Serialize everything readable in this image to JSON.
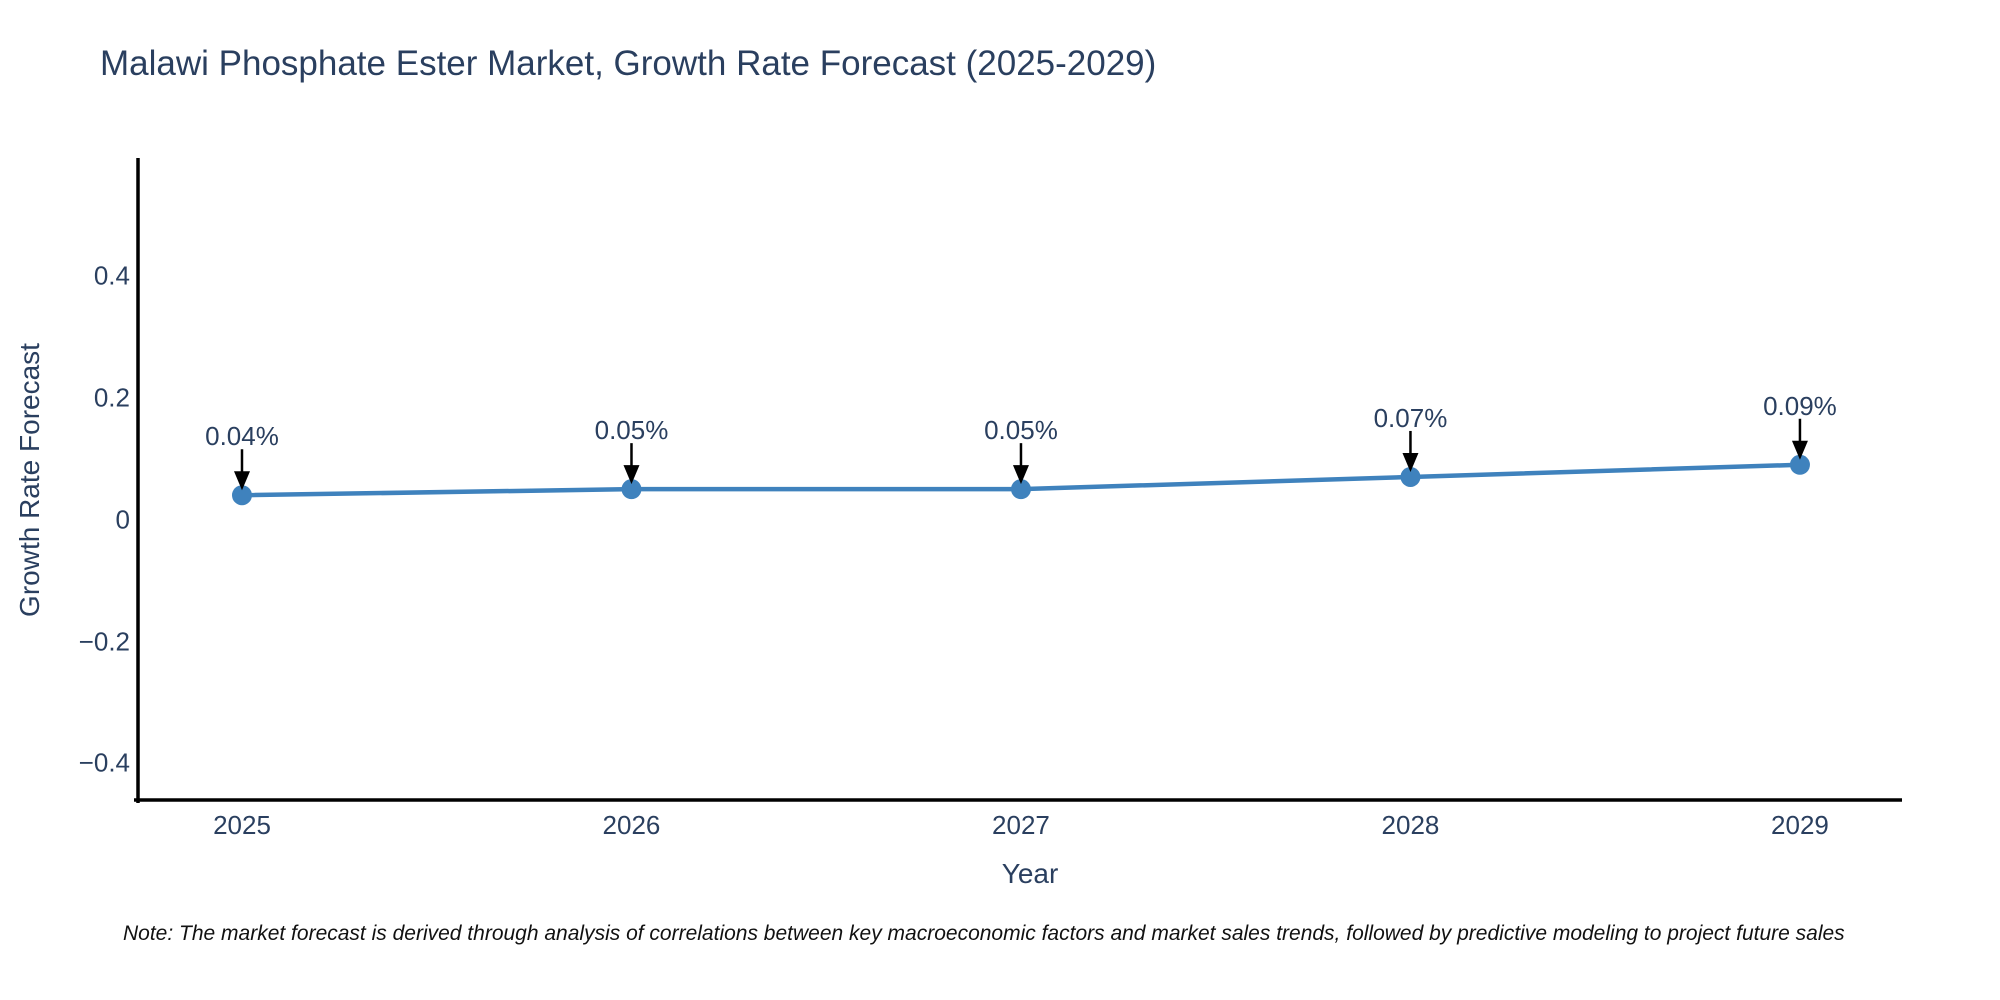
{
  "note": "Note: The market forecast is derived through analysis of correlations between key macroeconomic factors and market sales trends, followed by predictive modeling to project future sales",
  "chart_data": {
    "type": "line",
    "title": "Malawi Phosphate Ester Market, Growth Rate Forecast (2025-2029)",
    "xlabel": "Year",
    "ylabel": "Growth Rate Forecast",
    "x": [
      2025,
      2026,
      2027,
      2028,
      2029
    ],
    "series": [
      {
        "name": "Growth Rate Forecast",
        "values": [
          0.04,
          0.05,
          0.05,
          0.07,
          0.09
        ],
        "point_labels": [
          "0.04%",
          "0.05%",
          "0.05%",
          "0.07%",
          "0.09%"
        ]
      }
    ],
    "x_tick_labels": [
      "2025",
      "2026",
      "2027",
      "2028",
      "2029"
    ],
    "y_ticks": [
      {
        "value": 0.4,
        "label": "0.4"
      },
      {
        "value": 0.2,
        "label": "0.2"
      },
      {
        "value": 0,
        "label": "0"
      },
      {
        "value": -0.2,
        "label": "−0.2"
      },
      {
        "value": -0.4,
        "label": "−0.4"
      }
    ],
    "xlim": [
      2024.733,
      2029.262
    ],
    "ylim": [
      -0.46,
      0.59
    ],
    "grid": false,
    "legend": "none",
    "annotations_style": "value-label-with-down-arrow",
    "colors": {
      "line": "#3f82bd",
      "marker": "#3f82bd",
      "axis_line": "#000000",
      "text": "#2a3f5f",
      "arrow": "#000000",
      "note_text": "#111111"
    }
  }
}
